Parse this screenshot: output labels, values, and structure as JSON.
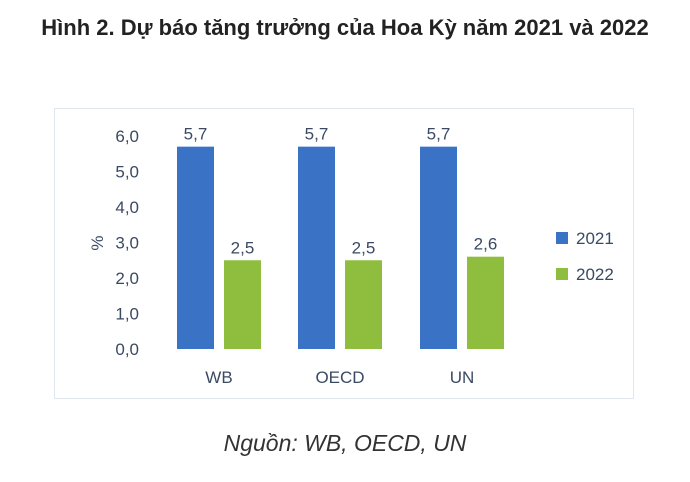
{
  "title": "Hình 2. Dự báo tăng trưởng của Hoa Kỳ năm 2021 và 2022",
  "source": "Nguồn: WB, OECD, UN",
  "colors": {
    "series_2021": "#3a73c6",
    "series_2022": "#8fbd3e",
    "text": "#3b4a63"
  },
  "chart_data": {
    "type": "bar",
    "title": "Hình 2. Dự báo tăng trưởng của Hoa Kỳ năm 2021 và 2022",
    "categories": [
      "WB",
      "OECD",
      "UN"
    ],
    "series": [
      {
        "name": "2021",
        "values": [
          5.7,
          5.7,
          5.7
        ],
        "labels": [
          "5,7",
          "5,7",
          "5,7"
        ]
      },
      {
        "name": "2022",
        "values": [
          2.5,
          2.5,
          2.6
        ],
        "labels": [
          "2,5",
          "2,5",
          "2,6"
        ]
      }
    ],
    "ylabel": "%",
    "xlabel": "",
    "ylim": [
      0,
      6
    ],
    "yticks": [
      "0,0",
      "1,0",
      "2,0",
      "3,0",
      "4,0",
      "5,0",
      "6,0"
    ],
    "legend_position": "right",
    "grid": false
  }
}
